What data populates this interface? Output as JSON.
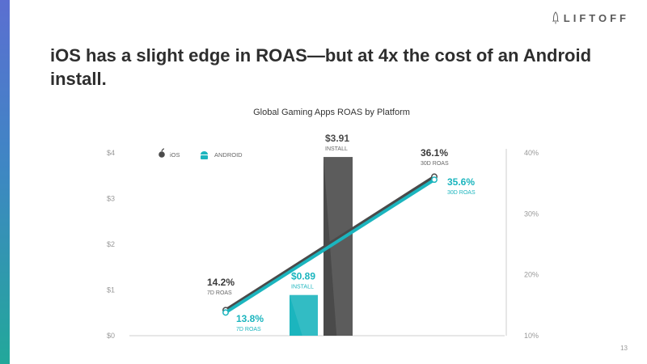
{
  "brand": {
    "name": "LIFTOFF",
    "icon": "rocket-icon"
  },
  "slide": {
    "title": "iOS has a slight edge in ROAS—but at 4x the cost of an Android install.",
    "page_number": "13"
  },
  "chart_data": {
    "type": "bar+line",
    "title": "Global Gaming Apps ROAS by Platform",
    "left_axis": {
      "unit": "$",
      "ticks": [
        "$0",
        "$1",
        "$2",
        "$3",
        "$4"
      ],
      "range": [
        0,
        4
      ]
    },
    "right_axis": {
      "unit": "%",
      "ticks": [
        "10%",
        "20%",
        "30%",
        "40%"
      ],
      "range": [
        10,
        40
      ]
    },
    "legend": {
      "placement": "top-left",
      "items": [
        {
          "label": "iOS",
          "icon": "apple-icon",
          "color": "#4a4a4a"
        },
        {
          "label": "ANDROID",
          "icon": "android-icon",
          "color": "#1bb5be"
        }
      ]
    },
    "bars": [
      {
        "series": "ANDROID",
        "value": 0.89,
        "value_label": "$0.89",
        "sub_label": "INSTALL",
        "color": "#1bb5be"
      },
      {
        "series": "iOS",
        "value": 3.91,
        "value_label": "$3.91",
        "sub_label": "INSTALL",
        "color": "#4a4a4a"
      }
    ],
    "lines": [
      {
        "series": "iOS",
        "color": "#4a4a4a",
        "points": [
          {
            "period": "7D ROAS",
            "value": 14.2,
            "value_label": "14.2%"
          },
          {
            "period": "30D ROAS",
            "value": 36.1,
            "value_label": "36.1%"
          }
        ]
      },
      {
        "series": "ANDROID",
        "color": "#1bb5be",
        "points": [
          {
            "period": "7D ROAS",
            "value": 13.8,
            "value_label": "13.8%"
          },
          {
            "period": "30D ROAS",
            "value": 35.6,
            "value_label": "35.6%"
          }
        ]
      }
    ]
  }
}
